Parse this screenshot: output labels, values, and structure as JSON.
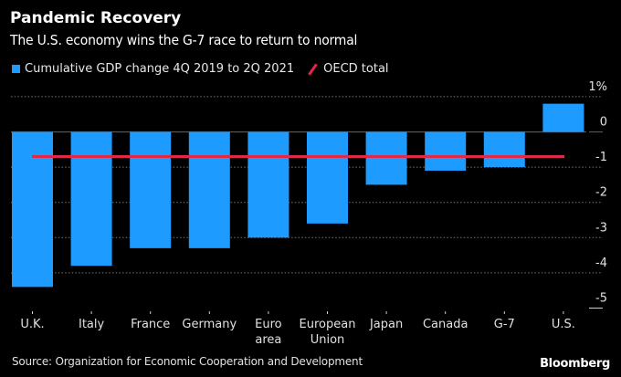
{
  "header": {
    "title": "Pandemic Recovery",
    "subtitle": "The U.S. economy wins the G-7 race to return to normal"
  },
  "legend": {
    "bar_label": "Cumulative GDP change 4Q 2019 to 2Q 2021",
    "line_label": "OECD total"
  },
  "footer": {
    "source": "Source: Organization for Economic Cooperation and Development",
    "brand": "Bloomberg"
  },
  "colors": {
    "bar": "#1e9bff",
    "line": "#e0284a",
    "background": "#000000"
  },
  "chart_data": {
    "type": "bar",
    "title": "Pandemic Recovery",
    "subtitle": "The U.S. economy wins the G-7 race to return to normal",
    "categories": [
      [
        "U.K."
      ],
      [
        "Italy"
      ],
      [
        "France"
      ],
      [
        "Germany"
      ],
      [
        "Euro",
        "area"
      ],
      [
        "European",
        "Union"
      ],
      [
        "Japan"
      ],
      [
        "Canada"
      ],
      [
        "G-7"
      ],
      [
        "U.S."
      ]
    ],
    "series": [
      {
        "name": "Cumulative GDP change 4Q 2019 to 2Q 2021",
        "type": "bar",
        "values": [
          -4.4,
          -3.8,
          -3.3,
          -3.3,
          -3.0,
          -2.6,
          -1.5,
          -1.1,
          -1.0,
          0.8
        ]
      },
      {
        "name": "OECD total",
        "type": "reference-line",
        "value": -0.7
      }
    ],
    "xlabel": "",
    "ylabel": "",
    "ylim": [
      -5,
      1
    ],
    "yticks": [
      1,
      0,
      -1,
      -2,
      -3,
      -4,
      -5
    ],
    "ytick_labels": [
      "1%",
      "0",
      "-1",
      "-2",
      "-3",
      "-4",
      "-5"
    ],
    "y_axis_side": "right",
    "grid": true,
    "legend_position": "top-left",
    "source": "Source: Organization for Economic Cooperation and Development"
  }
}
